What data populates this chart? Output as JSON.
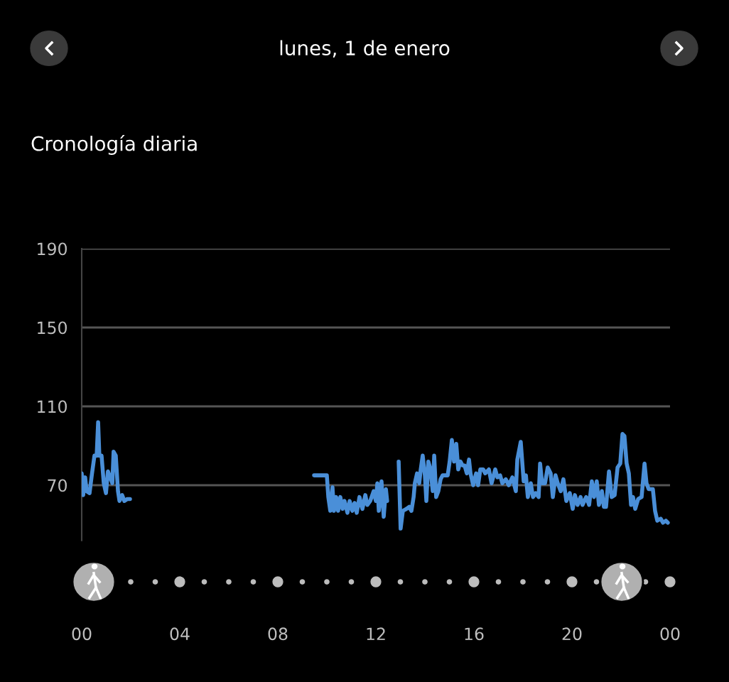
{
  "chart_data": {
    "type": "line",
    "title": "lunes, 1 de enero",
    "subtitle": "Cronología diaria",
    "x": [
      0.0,
      0.06,
      0.14,
      0.2,
      0.32,
      0.41,
      0.52,
      0.61,
      0.67,
      0.72,
      0.81,
      0.9,
      0.99,
      1.07,
      1.16,
      1.25,
      1.3,
      1.39,
      1.48,
      1.54,
      1.65,
      1.74,
      1.86,
      1.97,
      5.0,
      9.48,
      10.0,
      10.06,
      10.14,
      10.23,
      10.29,
      10.38,
      10.46,
      10.55,
      10.64,
      10.72,
      10.84,
      10.93,
      11.04,
      11.13,
      11.22,
      11.33,
      11.45,
      11.57,
      11.65,
      11.77,
      11.91,
      12.0,
      12.06,
      12.12,
      12.23,
      12.32,
      12.41,
      12.46,
      12.7,
      12.93,
      13.01,
      13.1,
      13.25,
      13.36,
      13.45,
      13.54,
      13.59,
      13.68,
      13.77,
      13.83,
      13.91,
      14.0,
      14.06,
      14.14,
      14.23,
      14.32,
      14.38,
      14.46,
      14.55,
      14.64,
      14.72,
      14.81,
      14.93,
      15.01,
      15.1,
      15.19,
      15.28,
      15.36,
      15.45,
      15.54,
      15.62,
      15.71,
      15.8,
      15.86,
      15.97,
      16.09,
      16.17,
      16.26,
      16.38,
      16.46,
      16.61,
      16.72,
      16.87,
      16.96,
      17.07,
      17.16,
      17.3,
      17.42,
      17.57,
      17.71,
      17.77,
      17.91,
      18.03,
      18.12,
      18.2,
      18.32,
      18.41,
      18.52,
      18.64,
      18.7,
      18.78,
      18.9,
      19.01,
      19.13,
      19.22,
      19.33,
      19.42,
      19.54,
      19.65,
      19.77,
      19.91,
      20.03,
      20.12,
      20.23,
      20.35,
      20.43,
      20.58,
      20.7,
      20.81,
      20.9,
      21.01,
      21.1,
      21.22,
      21.3,
      21.39,
      21.51,
      21.62,
      21.74,
      21.86,
      21.97,
      22.06,
      22.14,
      22.23,
      22.32,
      22.41,
      22.49,
      22.58,
      22.7,
      22.84,
      22.96,
      23.04,
      23.13,
      23.22,
      23.3,
      23.39,
      23.48,
      23.62,
      23.71,
      23.83,
      23.91
    ],
    "series": [
      {
        "color": "#4a8fd8",
        "values": [
          76,
          65,
          74,
          67,
          66,
          75,
          85,
          85,
          102,
          85,
          85,
          71,
          66,
          77,
          74,
          71,
          87,
          85,
          67,
          62,
          65,
          62,
          63,
          63,
          null,
          75,
          75,
          64,
          57,
          69,
          57,
          64,
          57,
          64,
          58,
          62,
          56,
          62,
          57,
          61,
          56,
          64,
          58,
          65,
          60,
          62,
          67,
          62,
          71,
          57,
          72,
          54,
          68,
          62,
          null,
          82,
          48,
          57,
          58,
          59,
          57,
          64,
          71,
          76,
          71,
          78,
          85,
          75,
          62,
          82,
          78,
          67,
          85,
          64,
          67,
          73,
          75,
          75,
          75,
          82,
          93,
          82,
          91,
          78,
          82,
          80,
          80,
          76,
          83,
          76,
          70,
          76,
          70,
          78,
          78,
          76,
          78,
          71,
          78,
          74,
          75,
          71,
          73,
          70,
          74,
          67,
          83,
          92,
          72,
          75,
          64,
          71,
          64,
          66,
          64,
          81,
          71,
          71,
          79,
          76,
          64,
          75,
          71,
          67,
          73,
          62,
          66,
          58,
          65,
          60,
          64,
          60,
          64,
          60,
          72,
          64,
          72,
          60,
          67,
          59,
          59,
          77,
          64,
          65,
          79,
          81,
          96,
          95,
          81,
          76,
          60,
          64,
          58,
          63,
          64,
          81,
          71,
          68,
          68,
          68,
          57,
          52,
          53,
          51,
          52,
          51
        ]
      }
    ],
    "xlim": [
      0,
      24
    ],
    "xticks": [
      {
        "value": 0,
        "label": "00"
      },
      {
        "value": 4,
        "label": "04"
      },
      {
        "value": 8,
        "label": "08"
      },
      12,
      16,
      20,
      {
        "value": 24,
        "label": "00"
      }
    ],
    "ylim": [
      42,
      190
    ],
    "yticks": [
      70,
      110,
      150,
      190
    ],
    "grid": "y",
    "legend": false,
    "marker": "none",
    "line_style": "solid"
  }
}
